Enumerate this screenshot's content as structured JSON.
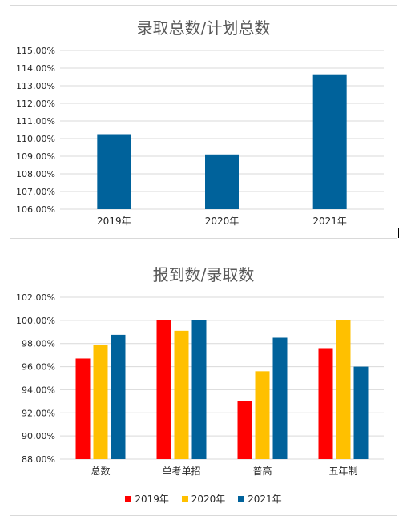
{
  "chart_data": [
    {
      "type": "bar",
      "title": "录取总数/计划总数",
      "categories": [
        "2019年",
        "2020年",
        "2021年"
      ],
      "values": [
        110.25,
        109.1,
        113.65
      ],
      "ylim": [
        106,
        115
      ],
      "yticks": [
        "106.00%",
        "107.00%",
        "108.00%",
        "109.00%",
        "110.00%",
        "111.00%",
        "112.00%",
        "113.00%",
        "114.00%",
        "115.00%"
      ],
      "grid": true,
      "colors": [
        "#00629b"
      ]
    },
    {
      "type": "bar",
      "title": "报到数/录取数",
      "categories": [
        "总数",
        "单考单招",
        "普高",
        "五年制"
      ],
      "series": [
        {
          "name": "2019年",
          "values": [
            96.7,
            100.0,
            93.0,
            97.6
          ],
          "color": "#ff0000"
        },
        {
          "name": "2020年",
          "values": [
            97.85,
            99.1,
            95.6,
            100.0
          ],
          "color": "#ffc000"
        },
        {
          "name": "2021年",
          "values": [
            98.75,
            100.0,
            98.5,
            96.0
          ],
          "color": "#00629b"
        }
      ],
      "ylim": [
        88,
        102
      ],
      "yticks": [
        "88.00%",
        "90.00%",
        "92.00%",
        "94.00%",
        "96.00%",
        "98.00%",
        "100.00%",
        "102.00%"
      ],
      "grid": true,
      "legend_position": "bottom"
    }
  ]
}
